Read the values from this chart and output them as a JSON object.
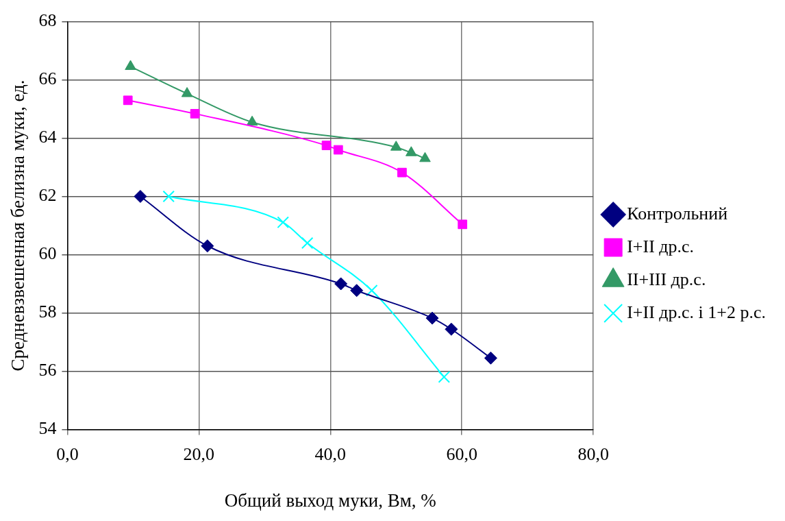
{
  "chart_data": {
    "type": "line",
    "xlabel": "Общий выход муки, Вм, %",
    "ylabel": "Средневзвешенная белизна муки, ед.",
    "xlim": [
      0,
      80
    ],
    "xticks": [
      {
        "value": 0,
        "label": "0,0"
      },
      {
        "value": 20,
        "label": "20,0"
      },
      {
        "value": 40,
        "label": "40,0"
      },
      {
        "value": 60,
        "label": "60,0"
      },
      {
        "value": 80,
        "label": "80,0"
      }
    ],
    "ylim": [
      54,
      68
    ],
    "yticks": [
      54,
      56,
      58,
      60,
      62,
      64,
      66,
      68
    ],
    "grid": true,
    "legend": "right",
    "series": [
      {
        "name": "Контрольний",
        "color": "#000080",
        "marker": "diamond",
        "x": [
          11.1,
          21.3,
          41.6,
          44.0,
          55.5,
          58.4,
          64.4
        ],
        "values": [
          62.0,
          60.3,
          59.0,
          58.77,
          57.82,
          57.44,
          56.45
        ]
      },
      {
        "name": "I+II др.с.",
        "color": "#ff00ff",
        "marker": "square",
        "x": [
          9.2,
          19.4,
          39.4,
          41.2,
          50.9,
          60.1
        ],
        "values": [
          65.3,
          64.84,
          63.75,
          63.6,
          62.82,
          61.04
        ]
      },
      {
        "name": "II+III др.с.",
        "color": "#339966",
        "marker": "triangle",
        "x": [
          9.6,
          18.2,
          28.1,
          50.0,
          52.3,
          54.4
        ],
        "values": [
          66.46,
          65.53,
          64.55,
          63.69,
          63.5,
          63.3
        ]
      },
      {
        "name": "I+II др.с. і 1+2 р.с.",
        "color": "#00ffff",
        "marker": "cross",
        "x": [
          15.4,
          32.8,
          36.5,
          46.3,
          57.3
        ],
        "values": [
          62.0,
          61.11,
          60.4,
          58.77,
          55.8
        ]
      }
    ]
  }
}
